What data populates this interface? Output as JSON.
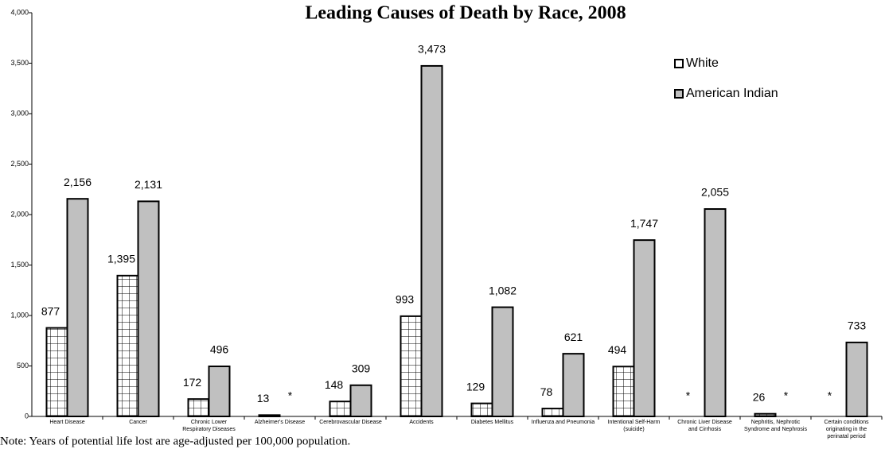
{
  "chart_data": {
    "type": "bar",
    "title": "Leading Causes of Death by Race, 2008",
    "note": "Note:  Years of potential life lost are age-adjusted per 100,000 population.",
    "categories": [
      "Heart Disease",
      "Cancer",
      "Chronic Lower Respiratory Diseases",
      "Alzheimer's Disease",
      "Cerebrovascular Disease",
      "Accidents",
      "Diabetes Mellitus",
      "Influenza and Pneumonia",
      "Intentional Self-Harm (suicide)",
      "Chronic Liver Disease and Cirrhosis",
      "Nephritis, Nephrotic Syndrome and Nephrosis",
      "Certain conditions originating in the perinatal period"
    ],
    "series": [
      {
        "name": "White",
        "color": "#ffffff",
        "pattern": "grid",
        "values": [
          877,
          1395,
          172,
          13,
          148,
          993,
          129,
          78,
          494,
          null,
          26,
          null
        ],
        "value_labels": [
          "877",
          "1,395",
          "172",
          "13",
          "148",
          "993",
          "129",
          "78",
          "494",
          "*",
          "26",
          "*"
        ]
      },
      {
        "name": "American Indian",
        "color": "#c0c0c0",
        "values": [
          2156,
          2131,
          496,
          null,
          309,
          3473,
          1082,
          621,
          1747,
          2055,
          null,
          733
        ],
        "value_labels": [
          "2,156",
          "2,131",
          "496",
          "*",
          "309",
          "3,473",
          "1,082",
          "621",
          "1,747",
          "2,055",
          "*",
          "733"
        ]
      }
    ],
    "ylim": [
      0,
      4000
    ],
    "yticks": [
      0,
      500,
      {
        "value": 1000,
        "label": "1,000"
      },
      {
        "value": 1500,
        "label": "1,500"
      },
      {
        "value": 2000,
        "label": "2,000"
      },
      {
        "value": 2500,
        "label": "2,500"
      },
      {
        "value": 3000,
        "label": "3,000"
      },
      {
        "value": 3500,
        "label": "3,500"
      },
      {
        "value": 4000,
        "label": "4,000"
      }
    ],
    "legend": "top-right"
  }
}
